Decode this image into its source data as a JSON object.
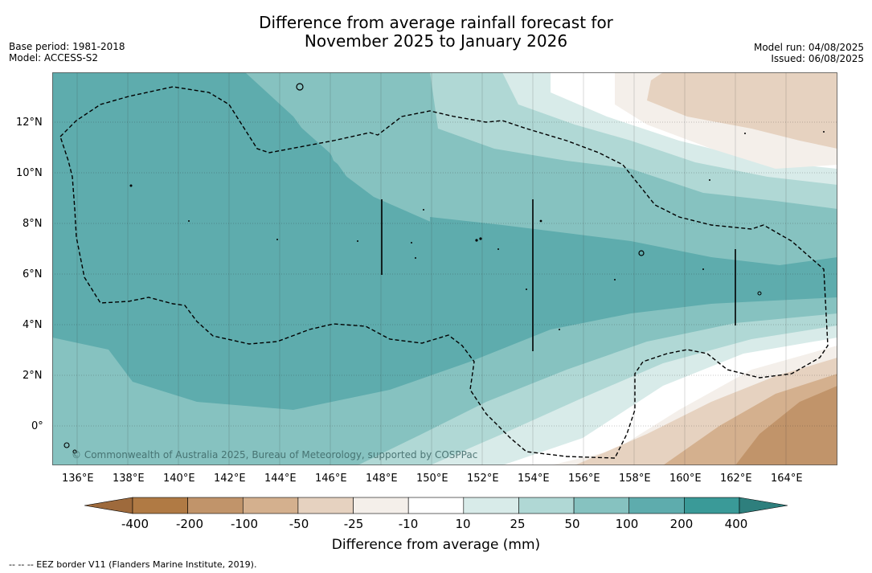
{
  "title": {
    "line1": "Difference from average rainfall forecast for",
    "line2": "November 2025 to January 2026"
  },
  "info_left": {
    "base_period": "Base period: 1981-2018",
    "model": "Model: ACCESS-S2"
  },
  "info_right": {
    "model_run": "Model run: 04/08/2025",
    "issued": "Issued: 06/08/2025"
  },
  "map": {
    "lon_range": [
      135,
      166
    ],
    "lat_range": [
      -1.5,
      14
    ],
    "lat_ticks": [
      "12°N",
      "10°N",
      "8°N",
      "6°N",
      "4°N",
      "2°N",
      "0°"
    ],
    "lon_ticks": [
      "136°E",
      "138°E",
      "140°E",
      "142°E",
      "144°E",
      "146°E",
      "148°E",
      "150°E",
      "152°E",
      "154°E",
      "156°E",
      "158°E",
      "160°E",
      "162°E",
      "164°E"
    ],
    "copyright": "© Commonwealth of Australia 2025, Bureau of Meteorology, supported by COSPPac"
  },
  "colorbar": {
    "tick_labels": [
      "-400",
      "-200",
      "-100",
      "-50",
      "-25",
      "-10",
      "10",
      "25",
      "50",
      "100",
      "200",
      "400"
    ],
    "colors": [
      "#9e6a3c",
      "#b07a44",
      "#c1946a",
      "#d4b08e",
      "#e6d2c0",
      "#f4efea",
      "#ffffff",
      "#d8ebe9",
      "#b0d8d5",
      "#86c2c0",
      "#5eacad",
      "#3a9a98",
      "#2e7f7d"
    ],
    "label": "Difference from average (mm)"
  },
  "footnote": "--  --  -- EEZ border V11 (Flanders Marine Institute, 2019)."
}
